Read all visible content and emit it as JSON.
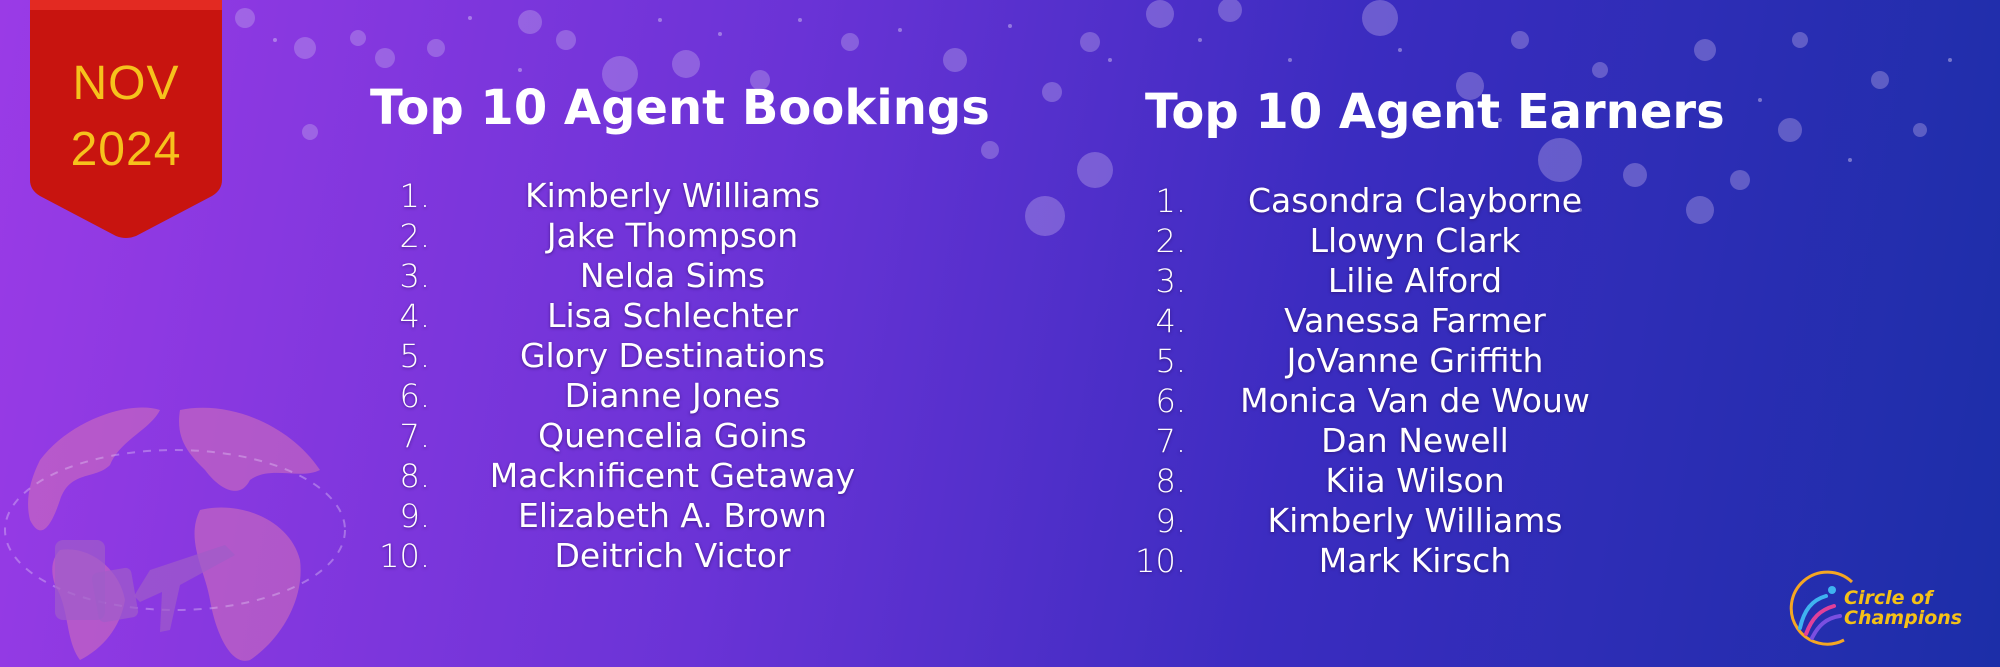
{
  "badge": {
    "month": "NOV",
    "year": "2024"
  },
  "bookings": {
    "title": "Top 10 Agent Bookings",
    "items": [
      {
        "rank": "1.",
        "name": "Kimberly Williams"
      },
      {
        "rank": "2.",
        "name": "Jake Thompson"
      },
      {
        "rank": "3.",
        "name": "Nelda Sims"
      },
      {
        "rank": "4.",
        "name": "Lisa Schlechter"
      },
      {
        "rank": "5.",
        "name": "Glory Destinations"
      },
      {
        "rank": "6.",
        "name": "Dianne Jones"
      },
      {
        "rank": "7.",
        "name": "Quencelia Goins"
      },
      {
        "rank": "8.",
        "name": "Macknificent Getaway"
      },
      {
        "rank": "9.",
        "name": "Elizabeth A. Brown"
      },
      {
        "rank": "10.",
        "name": "Deitrich Victor"
      }
    ]
  },
  "earners": {
    "title": "Top 10 Agent Earners",
    "items": [
      {
        "rank": "1.",
        "name": "Casondra Clayborne"
      },
      {
        "rank": "2.",
        "name": "Llowyn Clark"
      },
      {
        "rank": "3.",
        "name": "Lilie Alford"
      },
      {
        "rank": "4.",
        "name": "Vanessa Farmer"
      },
      {
        "rank": "5.",
        "name": "JoVanne Griffith"
      },
      {
        "rank": "6.",
        "name": "Monica Van de Wouw"
      },
      {
        "rank": "7.",
        "name": "Dan Newell"
      },
      {
        "rank": "8.",
        "name": "Kiia Wilson"
      },
      {
        "rank": "9.",
        "name": "Kimberly Williams"
      },
      {
        "rank": "10.",
        "name": "Mark Kirsch"
      }
    ]
  },
  "logo": {
    "line1": "Circle of",
    "line2": "Champions"
  },
  "colors": {
    "badge_red": "#c8140f",
    "badge_text": "#f6c21c",
    "logo_gold": "#f5c117",
    "text": "#ffffff"
  }
}
